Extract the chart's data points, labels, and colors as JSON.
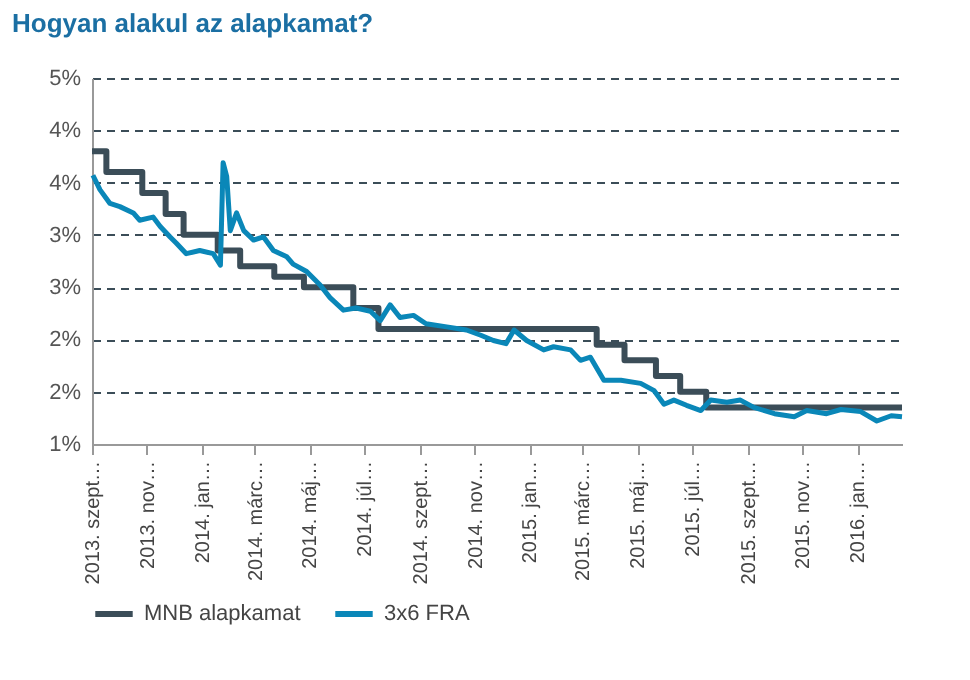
{
  "chart_data": {
    "type": "line",
    "title": "Hogyan alakul az alapkamat?",
    "ylim": [
      1,
      4.5
    ],
    "yticks": [
      {
        "value": 1,
        "label": "1%"
      },
      {
        "value": 1.5,
        "label": "2%"
      },
      {
        "value": 2,
        "label": "2%"
      },
      {
        "value": 2.5,
        "label": "3%"
      },
      {
        "value": 3,
        "label": "3%"
      },
      {
        "value": 3.5,
        "label": "4%"
      },
      {
        "value": 4,
        "label": "4%"
      },
      {
        "value": 4.5,
        "label": "5%"
      }
    ],
    "xlim": [
      "2013-09-01",
      "2016-02-20"
    ],
    "xticks": [
      {
        "value": "2013-09-01",
        "label": "2013. szept…"
      },
      {
        "value": "2013-11-01",
        "label": "2013. nov…"
      },
      {
        "value": "2014-01-01",
        "label": "2014. jan…"
      },
      {
        "value": "2014-03-01",
        "label": "2014. márc…"
      },
      {
        "value": "2014-05-01",
        "label": "2014. máj…"
      },
      {
        "value": "2014-07-01",
        "label": "2014. júl…"
      },
      {
        "value": "2014-09-01",
        "label": "2014. szept…"
      },
      {
        "value": "2014-11-01",
        "label": "2014. nov…"
      },
      {
        "value": "2015-01-01",
        "label": "2015. jan…"
      },
      {
        "value": "2015-03-01",
        "label": "2015. márc…"
      },
      {
        "value": "2015-05-01",
        "label": "2015. máj…"
      },
      {
        "value": "2015-07-01",
        "label": "2015. júl…"
      },
      {
        "value": "2015-09-01",
        "label": "2015. szept…"
      },
      {
        "value": "2015-11-01",
        "label": "2015. nov…"
      },
      {
        "value": "2016-01-01",
        "label": "2016. jan…"
      }
    ],
    "grid": "y",
    "legend": "bottom",
    "series": [
      {
        "name": "MNB alapkamat",
        "type": "step",
        "color": "#3b4d58",
        "x": [
          "2013-09-01",
          "2013-09-17",
          "2013-10-27",
          "2013-11-22",
          "2013-12-12",
          "2014-01-19",
          "2014-02-13",
          "2014-03-23",
          "2014-04-25",
          "2014-06-19",
          "2014-07-17",
          "2015-03-17",
          "2015-04-17",
          "2015-05-22",
          "2015-06-18",
          "2015-07-17",
          "2016-02-20"
        ],
        "values": [
          3.8,
          3.6,
          3.4,
          3.2,
          3.0,
          2.85,
          2.7,
          2.6,
          2.5,
          2.3,
          2.1,
          1.95,
          1.8,
          1.65,
          1.5,
          1.35,
          1.35
        ]
      },
      {
        "name": "3x6 FRA",
        "type": "line",
        "color": "#0a87b8",
        "x": [
          "2013-09-02",
          "2013-09-10",
          "2013-09-21",
          "2013-10-02",
          "2013-10-17",
          "2013-10-24",
          "2013-11-08",
          "2013-11-16",
          "2013-11-27",
          "2013-12-04",
          "2013-12-15",
          "2013-12-30",
          "2014-01-14",
          "2014-01-22",
          "2014-01-25",
          "2014-01-29",
          "2014-02-02",
          "2014-02-09",
          "2014-02-17",
          "2014-02-28",
          "2014-03-11",
          "2014-03-22",
          "2014-04-06",
          "2014-04-13",
          "2014-04-28",
          "2014-05-13",
          "2014-05-24",
          "2014-06-08",
          "2014-06-22",
          "2014-07-08",
          "2014-07-19",
          "2014-07-30",
          "2014-08-10",
          "2014-08-25",
          "2014-09-08",
          "2014-10-01",
          "2014-10-23",
          "2014-11-08",
          "2014-11-22",
          "2014-12-06",
          "2014-12-15",
          "2014-12-29",
          "2015-01-17",
          "2015-01-28",
          "2015-02-16",
          "2015-02-27",
          "2015-03-10",
          "2015-03-25",
          "2015-04-13",
          "2015-05-05",
          "2015-05-20",
          "2015-05-31",
          "2015-06-11",
          "2015-06-25",
          "2015-07-11",
          "2015-07-22",
          "2015-08-09",
          "2015-08-24",
          "2015-09-08",
          "2015-10-01",
          "2015-10-23",
          "2015-11-06",
          "2015-11-28",
          "2015-12-14",
          "2016-01-05",
          "2016-01-23",
          "2016-02-08",
          "2016-02-20"
        ],
        "values": [
          3.57,
          3.43,
          3.3,
          3.27,
          3.21,
          3.14,
          3.17,
          3.08,
          2.98,
          2.92,
          2.82,
          2.85,
          2.82,
          2.71,
          3.69,
          3.56,
          3.04,
          3.21,
          3.04,
          2.95,
          2.98,
          2.85,
          2.79,
          2.72,
          2.65,
          2.52,
          2.4,
          2.28,
          2.3,
          2.27,
          2.18,
          2.33,
          2.21,
          2.23,
          2.15,
          2.12,
          2.09,
          2.04,
          1.99,
          1.96,
          2.09,
          1.99,
          1.9,
          1.93,
          1.9,
          1.8,
          1.83,
          1.61,
          1.61,
          1.58,
          1.51,
          1.38,
          1.42,
          1.37,
          1.32,
          1.42,
          1.4,
          1.42,
          1.35,
          1.29,
          1.26,
          1.32,
          1.29,
          1.33,
          1.31,
          1.22,
          1.27,
          1.26
        ]
      }
    ]
  }
}
